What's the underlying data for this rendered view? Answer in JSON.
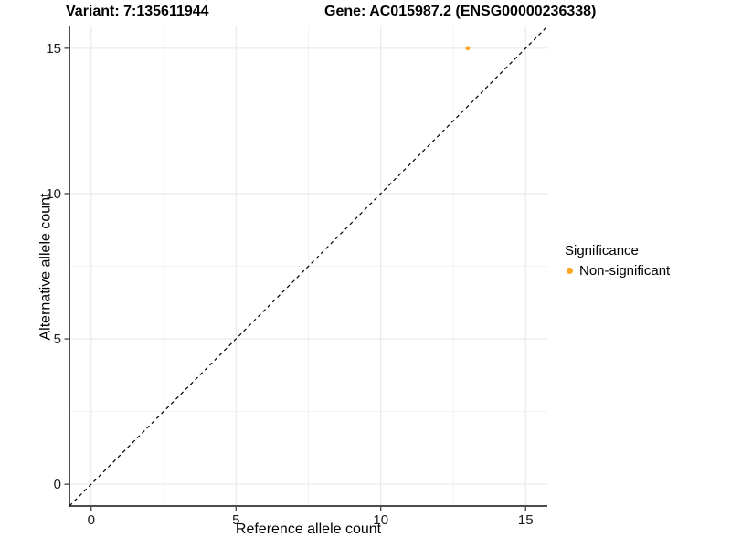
{
  "chart_data": {
    "type": "scatter",
    "title_left": "Variant: 7:135611944",
    "title_right": "Gene: AC015987.2 (ENSG00000236338)",
    "xlabel": "Reference allele count",
    "ylabel": "Alternative allele count",
    "xlim": [
      -0.75,
      15.75
    ],
    "ylim": [
      -0.75,
      15.75
    ],
    "x_ticks": [
      0,
      5,
      10,
      15
    ],
    "y_ticks": [
      0,
      5,
      10,
      15
    ],
    "x_tick_labels": [
      "0",
      "5",
      "10",
      "15"
    ],
    "y_tick_labels": [
      "0",
      "5",
      "10",
      "15"
    ],
    "minor_ticks": [
      2.5,
      7.5,
      12.5
    ],
    "grid": true,
    "reference_line": {
      "type": "identity",
      "style": "dashed",
      "color": "#000000"
    },
    "points": [
      {
        "x": 13,
        "y": 15,
        "series": "Non-significant"
      }
    ],
    "legend": {
      "title": "Significance",
      "position": "right",
      "entries": [
        {
          "label": "Non-significant",
          "color": "#FFA41E"
        }
      ]
    },
    "colors": {
      "point": "#FFA41E",
      "grid_major": "#e6e6e6",
      "grid_minor": "#f3f3f3",
      "axis_line": "#4d4d4d",
      "tick_mark": "#333333",
      "tick_text": "#1a1a1a",
      "background": "#ffffff"
    }
  }
}
